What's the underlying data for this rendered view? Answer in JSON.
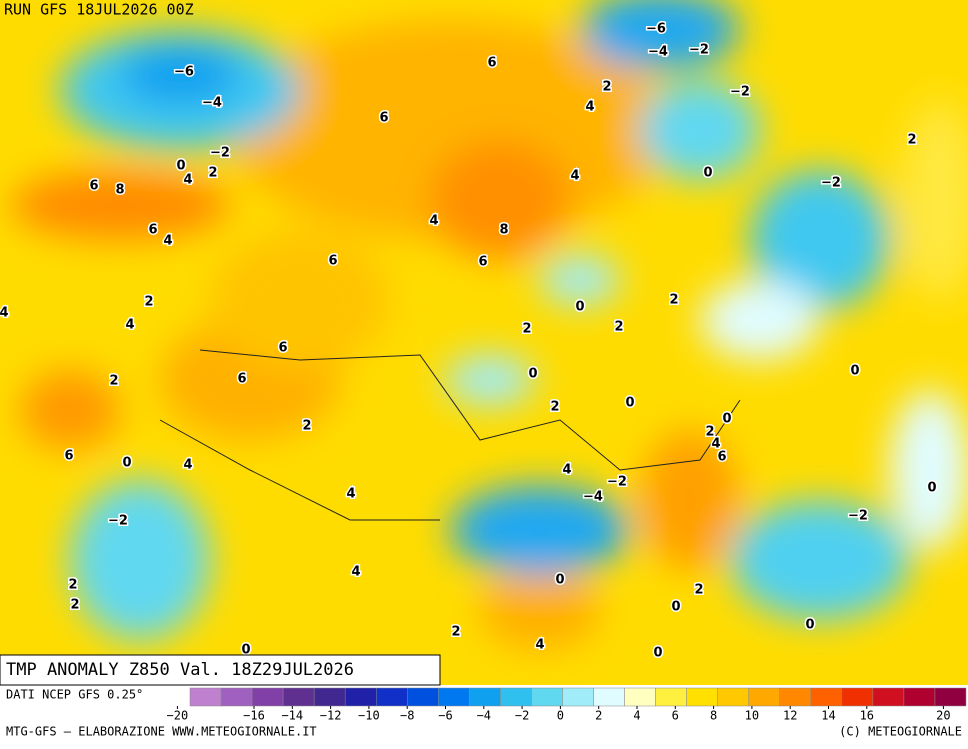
{
  "header": {
    "run": "RUN GFS 18JUL2026 00Z"
  },
  "title": "TMP ANOMALY Z850 Val. 18Z29JUL2026",
  "footer": {
    "source": "DATI NCEP GFS 0.25°",
    "credit": "MTG-GFS — ELABORAZIONE WWW.METEOGIORNALE.IT",
    "copyright": "(C) METEOGIORNALE"
  },
  "colorbar": {
    "colors": [
      "#c080d0",
      "#a060c0",
      "#8040a8",
      "#603090",
      "#402890",
      "#2020a8",
      "#1030c8",
      "#0050e0",
      "#0078f0",
      "#10a0f0",
      "#30c0f0",
      "#60d8f0",
      "#a0ecf8",
      "#e0fcff",
      "#ffffc0",
      "#fff040",
      "#ffe000",
      "#ffc800",
      "#ffa800",
      "#ff8800",
      "#ff6000",
      "#f03000",
      "#d01020",
      "#b00030",
      "#900040"
    ],
    "ticks": [
      {
        "value": -20,
        "label": "−20"
      },
      {
        "value": -16,
        "label": "−16"
      },
      {
        "value": -14,
        "label": "−14"
      },
      {
        "value": -12,
        "label": "−12"
      },
      {
        "value": -10,
        "label": "−10"
      },
      {
        "value": -8,
        "label": "−8"
      },
      {
        "value": -6,
        "label": "−6"
      },
      {
        "value": -4,
        "label": "−4"
      },
      {
        "value": -2,
        "label": "−2"
      },
      0,
      2,
      4,
      6,
      8,
      10,
      12,
      14,
      16,
      20
    ]
  },
  "map": {
    "labels": [
      "−6",
      "−4",
      "−2",
      "0",
      "4",
      "2",
      "6",
      "8",
      "6",
      "4",
      "2",
      "4",
      "4",
      "2",
      "6",
      "0",
      "4",
      "−2",
      "2",
      "2",
      "0",
      "6",
      "6",
      "2",
      "4",
      "4",
      "6",
      "6",
      "4",
      "6",
      "8",
      "6",
      "4",
      "2",
      "4",
      "−6",
      "−4",
      "−2",
      "−2",
      "0",
      "2",
      "−2",
      "0",
      "2",
      "2",
      "2",
      "0",
      "2",
      "0",
      "0",
      "2",
      "4",
      "6",
      "0",
      "4",
      "−2",
      "−4",
      "0",
      "−2",
      "0",
      "2",
      "0",
      "2",
      "4",
      "0",
      "0"
    ]
  }
}
